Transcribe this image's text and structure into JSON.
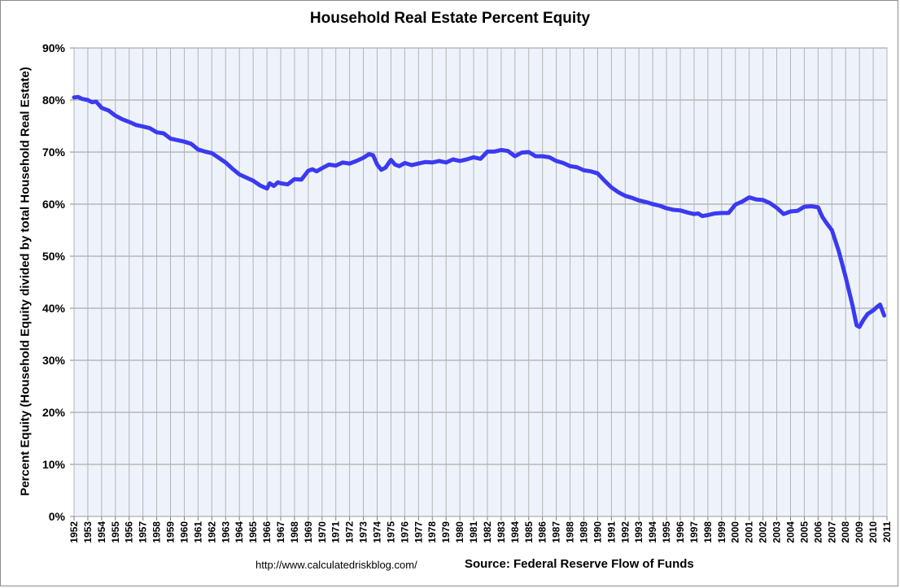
{
  "chart_data": {
    "type": "line",
    "title": "Household Real Estate Percent Equity",
    "ylabel": "Percent Equity (Household Equity divided by total Household Real Estate)",
    "xlabel": "",
    "ylim": [
      0,
      90
    ],
    "xlim": [
      1952,
      2011
    ],
    "grid": true,
    "legend": "none",
    "y_ticks": [
      "0%",
      "10%",
      "20%",
      "30%",
      "40%",
      "50%",
      "60%",
      "70%",
      "80%",
      "90%"
    ],
    "x_ticks": [
      "1952",
      "1953",
      "1954",
      "1955",
      "1956",
      "1957",
      "1958",
      "1959",
      "1960",
      "1961",
      "1962",
      "1963",
      "1964",
      "1965",
      "1966",
      "1967",
      "1968",
      "1969",
      "1970",
      "1971",
      "1972",
      "1973",
      "1974",
      "1975",
      "1976",
      "1977",
      "1978",
      "1979",
      "1980",
      "1981",
      "1982",
      "1983",
      "1984",
      "1985",
      "1986",
      "1987",
      "1988",
      "1989",
      "1990",
      "1991",
      "1992",
      "1993",
      "1994",
      "1995",
      "1996",
      "1997",
      "1998",
      "1999",
      "2000",
      "2001",
      "2002",
      "2003",
      "2004",
      "2005",
      "2006",
      "2007",
      "2008",
      "2009",
      "2010",
      "2011"
    ],
    "colors": {
      "line": "#3a3af2",
      "plot_background": "#eef3fb",
      "grid": "#a8a8a8"
    },
    "series": [
      {
        "x": [
          1952.0,
          1952.3,
          1952.6,
          1953.0,
          1953.3,
          1953.6,
          1954.0,
          1954.5,
          1955.0,
          1955.5,
          1956.0,
          1956.5,
          1957.0,
          1957.5,
          1958.0,
          1958.5,
          1959.0,
          1959.5,
          1960.0,
          1960.5,
          1961.0,
          1961.5,
          1962.0,
          1962.5,
          1963.0,
          1963.5,
          1964.0,
          1964.5,
          1965.0,
          1965.5,
          1966.0,
          1966.2,
          1966.5,
          1966.8,
          1967.0,
          1967.5,
          1968.0,
          1968.5,
          1969.0,
          1969.3,
          1969.6,
          1970.0,
          1970.5,
          1971.0,
          1971.5,
          1972.0,
          1972.5,
          1973.0,
          1973.4,
          1973.7,
          1974.0,
          1974.3,
          1974.6,
          1975.0,
          1975.3,
          1975.6,
          1976.0,
          1976.5,
          1977.0,
          1977.5,
          1978.0,
          1978.5,
          1979.0,
          1979.5,
          1980.0,
          1980.5,
          1981.0,
          1981.5,
          1982.0,
          1982.5,
          1983.0,
          1983.5,
          1984.0,
          1984.5,
          1985.0,
          1985.5,
          1986.0,
          1986.5,
          1987.0,
          1987.5,
          1988.0,
          1988.5,
          1989.0,
          1989.5,
          1990.0,
          1990.5,
          1991.0,
          1991.5,
          1992.0,
          1992.5,
          1993.0,
          1993.5,
          1994.0,
          1994.5,
          1995.0,
          1995.5,
          1996.0,
          1996.5,
          1997.0,
          1997.3,
          1997.6,
          1998.0,
          1998.5,
          1999.0,
          1999.5,
          2000.0,
          2000.5,
          2001.0,
          2001.5,
          2002.0,
          2002.5,
          2003.0,
          2003.5,
          2004.0,
          2004.5,
          2005.0,
          2005.5,
          2006.0,
          2006.3,
          2006.6,
          2007.0,
          2007.5,
          2008.0,
          2008.5,
          2008.8,
          2009.0,
          2009.3,
          2009.6,
          2010.0,
          2010.3,
          2010.5,
          2010.8
        ],
        "values": [
          80.5,
          80.6,
          80.2,
          80.0,
          79.6,
          79.7,
          78.5,
          78.0,
          77.0,
          76.3,
          75.8,
          75.2,
          74.9,
          74.6,
          73.8,
          73.6,
          72.6,
          72.3,
          72.0,
          71.6,
          70.5,
          70.1,
          69.8,
          68.9,
          68.0,
          66.8,
          65.7,
          65.1,
          64.5,
          63.6,
          63.0,
          64.0,
          63.5,
          64.2,
          64.0,
          63.8,
          64.8,
          64.7,
          66.4,
          66.7,
          66.3,
          66.9,
          67.6,
          67.4,
          68.0,
          67.8,
          68.3,
          68.9,
          69.6,
          69.4,
          67.6,
          66.6,
          67.0,
          68.5,
          67.6,
          67.3,
          67.9,
          67.5,
          67.8,
          68.1,
          68.0,
          68.3,
          68.0,
          68.6,
          68.3,
          68.6,
          69.0,
          68.7,
          70.1,
          70.1,
          70.4,
          70.2,
          69.2,
          69.9,
          70.0,
          69.2,
          69.2,
          69.0,
          68.3,
          67.9,
          67.3,
          67.1,
          66.5,
          66.3,
          65.9,
          64.5,
          63.2,
          62.3,
          61.6,
          61.2,
          60.7,
          60.4,
          60.0,
          59.7,
          59.2,
          58.9,
          58.8,
          58.4,
          58.1,
          58.2,
          57.7,
          57.9,
          58.2,
          58.3,
          58.3,
          59.9,
          60.5,
          61.3,
          60.9,
          60.8,
          60.2,
          59.3,
          58.1,
          58.6,
          58.7,
          59.5,
          59.6,
          59.4,
          57.6,
          56.4,
          55.0,
          51.0,
          46.0,
          40.5,
          36.7,
          36.4,
          37.8,
          38.9,
          39.6,
          40.3,
          40.7,
          38.6
        ]
      }
    ]
  },
  "footer": {
    "url": "http://www.calculatedriskblog.com/",
    "source": "Source: Federal Reserve Flow of Funds"
  }
}
